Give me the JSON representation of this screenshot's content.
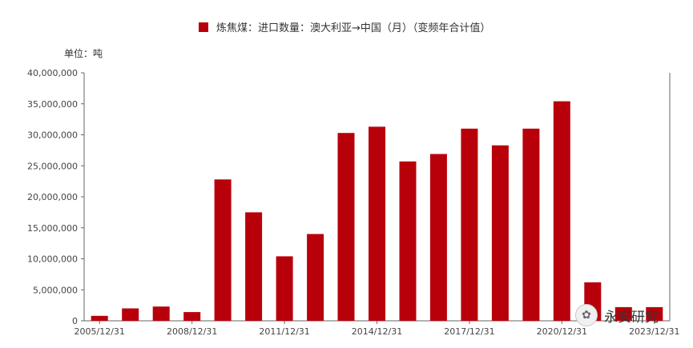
{
  "legend": {
    "series_name": "炼焦煤：进口数量：澳大利亚→中国（月）（变频年合计值）"
  },
  "unit_label": "单位：吨",
  "watermark": {
    "text": "永安研究",
    "icon_glyph": "✿"
  },
  "colors": {
    "bar": "#b8000a",
    "axis": "#666666",
    "text": "#444444"
  },
  "chart_data": {
    "type": "bar",
    "categories": [
      "2005/12/31",
      "2006/12/31",
      "2007/12/31",
      "2008/12/31",
      "2009/12/31",
      "2010/12/31",
      "2011/12/31",
      "2012/12/31",
      "2013/12/31",
      "2014/12/31",
      "2015/12/31",
      "2016/12/31",
      "2017/12/31",
      "2018/12/31",
      "2019/12/31",
      "2020/12/31",
      "2021/12/31",
      "2022/12/31",
      "2023/12/31"
    ],
    "series": [
      {
        "name": "炼焦煤：进口数量：澳大利亚→中国（月）（变频年合计值）",
        "values": [
          800000,
          2000000,
          2300000,
          1400000,
          22800000,
          17500000,
          10400000,
          14000000,
          30300000,
          31300000,
          25700000,
          26900000,
          31000000,
          28300000,
          31000000,
          35400000,
          6200000,
          2200000,
          2200000
        ]
      }
    ],
    "x_tick_labels": [
      "2005/12/31",
      "2008/12/31",
      "2011/12/31",
      "2014/12/31",
      "2017/12/31",
      "2020/12/31",
      "2023/12/31"
    ],
    "y_ticks": [
      0,
      5000000,
      10000000,
      15000000,
      20000000,
      25000000,
      30000000,
      35000000,
      40000000
    ],
    "y_tick_labels": [
      "0",
      "5,000,000",
      "10,000,000",
      "15,000,000",
      "20,000,000",
      "25,000,000",
      "30,000,000",
      "35,000,000",
      "40,000,000"
    ],
    "ylim": [
      0,
      40000000
    ],
    "grid": false,
    "legend_position": "top-center"
  }
}
